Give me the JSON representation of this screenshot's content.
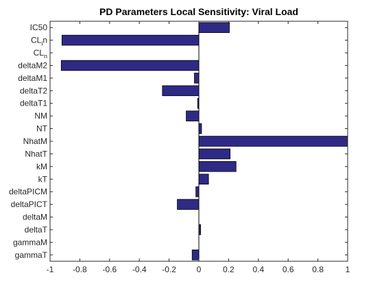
{
  "chart_data": {
    "type": "bar",
    "orientation": "horizontal",
    "title": "PD Parameters Local Sensitivity: Viral Load",
    "xlabel": "",
    "ylabel": "",
    "xlim": [
      -1,
      1
    ],
    "xticks": [
      -1,
      -0.8,
      -0.6,
      -0.4,
      -0.2,
      0,
      0.2,
      0.4,
      0.6,
      0.8,
      1
    ],
    "xtick_labels": [
      "-1",
      "-0.8",
      "-0.6",
      "-0.4",
      "-0.2",
      "0",
      "0.2",
      "0.4",
      "0.6",
      "0.8",
      "1"
    ],
    "categories": [
      {
        "label": "IC50"
      },
      {
        "label": "CL",
        "sub": "i",
        "suffix": "n"
      },
      {
        "label": "CL",
        "sub": "n"
      },
      {
        "label": "deltaM2"
      },
      {
        "label": "deltaM1"
      },
      {
        "label": "deltaT2"
      },
      {
        "label": "deltaT1"
      },
      {
        "label": "NM"
      },
      {
        "label": "NT"
      },
      {
        "label": "NhatM"
      },
      {
        "label": "NhatT"
      },
      {
        "label": "kM"
      },
      {
        "label": "kT"
      },
      {
        "label": "deltaPICM"
      },
      {
        "label": "deltaPICT"
      },
      {
        "label": "deltaM"
      },
      {
        "label": "deltaT"
      },
      {
        "label": "gammaM"
      },
      {
        "label": "gammaT"
      }
    ],
    "values": [
      0.205,
      -0.92,
      0.0,
      -0.925,
      -0.03,
      -0.245,
      -0.008,
      -0.085,
      0.018,
      1.0,
      0.21,
      0.25,
      0.065,
      -0.02,
      -0.145,
      0.0,
      0.012,
      0.0,
      -0.045
    ],
    "bar_color": "#2e2a85",
    "bar_edge_color": "#000000",
    "grid": false
  }
}
